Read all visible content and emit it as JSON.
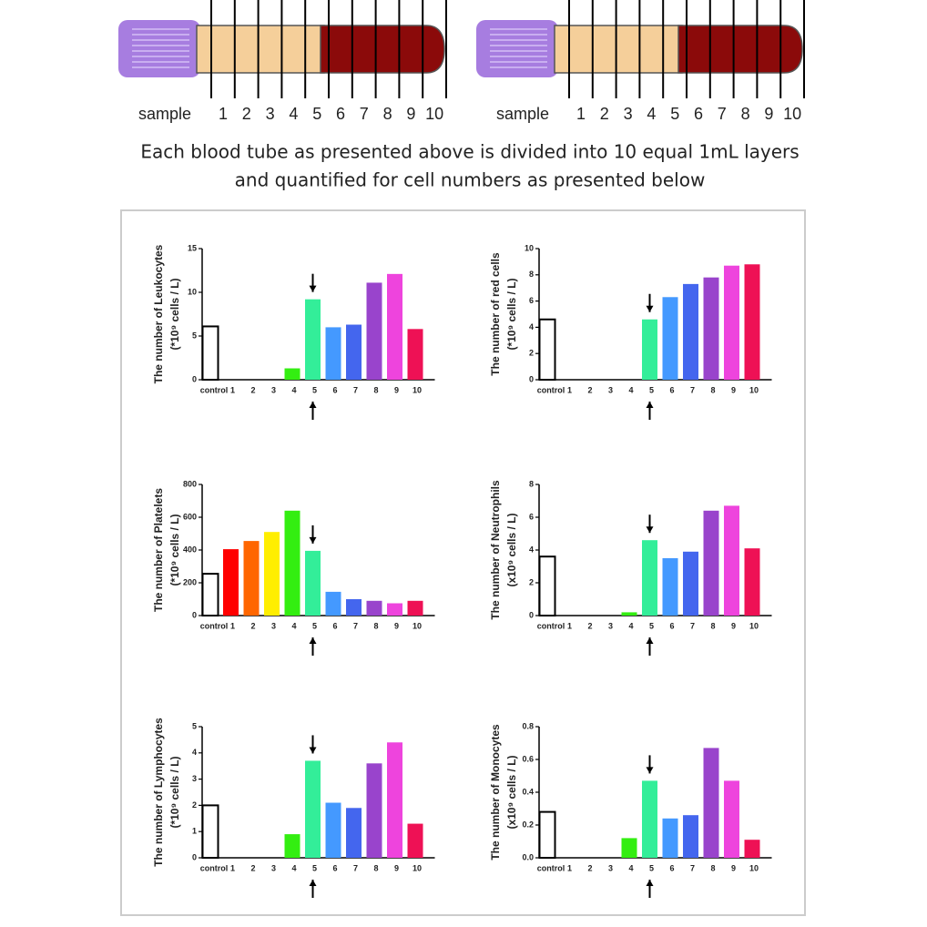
{
  "tubes": [
    {
      "label": "sample",
      "layers": [
        "1",
        "2",
        "3",
        "4",
        "5",
        "6",
        "7",
        "8",
        "9",
        "10"
      ]
    },
    {
      "label": "sample",
      "layers": [
        "1",
        "2",
        "3",
        "4",
        "5",
        "6",
        "7",
        "8",
        "9",
        "10"
      ]
    }
  ],
  "caption": [
    "Each blood tube as presented above is divided into 10 equal 1mL layers",
    "and quantified for cell numbers as presented below"
  ],
  "chart_data": [
    {
      "type": "bar",
      "ylabel": [
        "The number of Leukocytes",
        "(*10⁹ cells / L)"
      ],
      "categories": [
        "control",
        "1",
        "2",
        "3",
        "4",
        "5",
        "6",
        "7",
        "8",
        "9",
        "10"
      ],
      "values": [
        6.1,
        0,
        0,
        0,
        1.3,
        9.2,
        6.0,
        6.3,
        11.1,
        12.1,
        5.8
      ],
      "colors": [
        "#ffffff",
        "#ff0000",
        "#ff6600",
        "#ffee00",
        "#33ee11",
        "#33ee99",
        "#4499ff",
        "#4466ee",
        "#9944cc",
        "#ee44dd",
        "#ee1155"
      ],
      "edgecolors": [
        "#000000",
        "none",
        "none",
        "none",
        "none",
        "none",
        "none",
        "none",
        "none",
        "none",
        "none"
      ],
      "ylim": [
        0,
        15
      ],
      "yticks": [
        0,
        5,
        10,
        15
      ]
    },
    {
      "type": "bar",
      "ylabel": [
        "The number of  red cells",
        "(*10⁹ cells / L)"
      ],
      "categories": [
        "control",
        "1",
        "2",
        "3",
        "4",
        "5",
        "6",
        "7",
        "8",
        "9",
        "10"
      ],
      "values": [
        4.6,
        0,
        0,
        0,
        0,
        4.6,
        6.3,
        7.3,
        7.8,
        8.7,
        8.8
      ],
      "colors": [
        "#ffffff",
        "#ff0000",
        "#ff6600",
        "#ffee00",
        "#33ee11",
        "#33ee99",
        "#4499ff",
        "#4466ee",
        "#9944cc",
        "#ee44dd",
        "#ee1155"
      ],
      "edgecolors": [
        "#000000",
        "none",
        "none",
        "none",
        "none",
        "none",
        "none",
        "none",
        "none",
        "none",
        "none"
      ],
      "ylim": [
        0,
        10
      ],
      "yticks": [
        0,
        2,
        4,
        6,
        8,
        10
      ]
    },
    {
      "type": "bar",
      "ylabel": [
        "The number of  Platelets",
        "(*10⁹ cells / L)"
      ],
      "categories": [
        "control",
        "1",
        "2",
        "3",
        "4",
        "5",
        "6",
        "7",
        "8",
        "9",
        "10"
      ],
      "values": [
        255,
        405,
        455,
        510,
        640,
        395,
        145,
        100,
        90,
        75,
        90
      ],
      "colors": [
        "#ffffff",
        "#ff0000",
        "#ff6600",
        "#ffee00",
        "#33ee11",
        "#33ee99",
        "#4499ff",
        "#4466ee",
        "#9944cc",
        "#ee44dd",
        "#ee1155"
      ],
      "edgecolors": [
        "#000000",
        "none",
        "none",
        "none",
        "none",
        "none",
        "none",
        "none",
        "none",
        "none",
        "none"
      ],
      "ylim": [
        0,
        800
      ],
      "yticks": [
        0,
        200,
        400,
        600,
        800
      ]
    },
    {
      "type": "bar",
      "ylabel": [
        "The number of Neutrophils",
        "(x10⁹ cells / L)"
      ],
      "categories": [
        "control",
        "1",
        "2",
        "3",
        "4",
        "5",
        "6",
        "7",
        "8",
        "9",
        "10"
      ],
      "values": [
        3.6,
        0,
        0,
        0,
        0.2,
        4.6,
        3.5,
        3.9,
        6.4,
        6.7,
        4.1
      ],
      "colors": [
        "#ffffff",
        "#ff0000",
        "#ff6600",
        "#ffee00",
        "#33ee11",
        "#33ee99",
        "#4499ff",
        "#4466ee",
        "#9944cc",
        "#ee44dd",
        "#ee1155"
      ],
      "edgecolors": [
        "#000000",
        "none",
        "none",
        "none",
        "none",
        "none",
        "none",
        "none",
        "none",
        "none",
        "none"
      ],
      "ylim": [
        0,
        8
      ],
      "yticks": [
        0,
        2,
        4,
        6,
        8
      ]
    },
    {
      "type": "bar",
      "ylabel": [
        "The number of Lymphocytes",
        "(*10⁹ cells / L)"
      ],
      "categories": [
        "control",
        "1",
        "2",
        "3",
        "4",
        "5",
        "6",
        "7",
        "8",
        "9",
        "10"
      ],
      "values": [
        2.0,
        0,
        0,
        0,
        0.9,
        3.7,
        2.1,
        1.9,
        3.6,
        4.4,
        1.3
      ],
      "colors": [
        "#ffffff",
        "#ff0000",
        "#ff6600",
        "#ffee00",
        "#33ee11",
        "#33ee99",
        "#4499ff",
        "#4466ee",
        "#9944cc",
        "#ee44dd",
        "#ee1155"
      ],
      "edgecolors": [
        "#000000",
        "none",
        "none",
        "none",
        "none",
        "none",
        "none",
        "none",
        "none",
        "none",
        "none"
      ],
      "ylim": [
        0,
        5
      ],
      "yticks": [
        0,
        1,
        2,
        3,
        4,
        5
      ]
    },
    {
      "type": "bar",
      "ylabel": [
        "The number of Monocytes",
        "(x10⁹ cells / L)"
      ],
      "categories": [
        "control",
        "1",
        "2",
        "3",
        "4",
        "5",
        "6",
        "7",
        "8",
        "9",
        "10"
      ],
      "values": [
        0.28,
        0,
        0,
        0,
        0.12,
        0.47,
        0.24,
        0.26,
        0.67,
        0.47,
        0.11
      ],
      "colors": [
        "#ffffff",
        "#ff0000",
        "#ff6600",
        "#ffee00",
        "#33ee11",
        "#33ee99",
        "#4499ff",
        "#4466ee",
        "#9944cc",
        "#ee44dd",
        "#ee1155"
      ],
      "edgecolors": [
        "#000000",
        "none",
        "none",
        "none",
        "none",
        "none",
        "none",
        "none",
        "none",
        "none",
        "none"
      ],
      "ylim": [
        0,
        0.8
      ],
      "yticks": [
        {
          "value": 0,
          "label": "0.0"
        },
        0.2,
        0.4,
        0.6,
        0.8
      ]
    }
  ]
}
